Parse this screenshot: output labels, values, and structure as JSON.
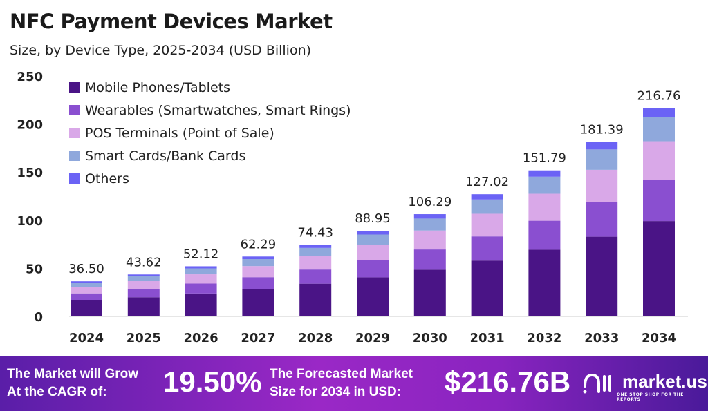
{
  "chart_data": {
    "type": "stacked-bar",
    "title": "NFC Payment Devices Market",
    "subtitle": "Size, by Device Type, 2025-2034 (USD Billion)",
    "categories": [
      "2024",
      "2025",
      "2026",
      "2027",
      "2028",
      "2029",
      "2030",
      "2031",
      "2032",
      "2033",
      "2034"
    ],
    "totals": [
      "36.50",
      "43.62",
      "52.12",
      "62.29",
      "74.43",
      "88.95",
      "106.29",
      "127.02",
      "151.79",
      "181.39",
      "216.76"
    ],
    "ylim": [
      0,
      250
    ],
    "yticks": [
      "0",
      "50",
      "100",
      "150",
      "200",
      "250"
    ],
    "grid": false,
    "legend_position": "top-left",
    "series": [
      {
        "name": "Mobile Phones/Tablets",
        "color": "#4a1486",
        "values": [
          16.68,
          19.93,
          23.82,
          28.47,
          34.01,
          40.65,
          48.57,
          58.05,
          69.37,
          82.9,
          99.06
        ]
      },
      {
        "name": "Wearables (Smartwatches, Smart Rings)",
        "color": "#8a4fd0",
        "values": [
          7.23,
          8.64,
          10.32,
          12.33,
          14.74,
          17.61,
          21.05,
          25.15,
          30.05,
          35.92,
          42.92
        ]
      },
      {
        "name": "POS Terminals (Point of Sale)",
        "color": "#d9a8e8",
        "values": [
          6.75,
          8.07,
          9.64,
          11.52,
          13.77,
          16.46,
          19.66,
          23.5,
          28.08,
          33.56,
          40.1
        ]
      },
      {
        "name": "Smart Cards/Bank Cards",
        "color": "#8fa8dc",
        "values": [
          4.27,
          5.1,
          6.1,
          7.29,
          8.71,
          10.41,
          12.44,
          14.86,
          17.76,
          21.22,
          25.36
        ]
      },
      {
        "name": "Others",
        "color": "#6b63f5",
        "values": [
          1.57,
          1.88,
          2.24,
          2.68,
          3.2,
          3.82,
          4.57,
          5.46,
          6.53,
          7.8,
          9.32
        ]
      }
    ]
  },
  "banner": {
    "cagr_label_1": "The Market will Grow",
    "cagr_label_2": "At the CAGR of:",
    "cagr_value": "19.50%",
    "forecast_label_1": "The Forecasted Market",
    "forecast_label_2": "Size for 2034 in USD:",
    "forecast_value": "$216.76B",
    "logo": "market.us",
    "logo_tagline": "ONE STOP SHOP FOR THE REPORTS"
  }
}
